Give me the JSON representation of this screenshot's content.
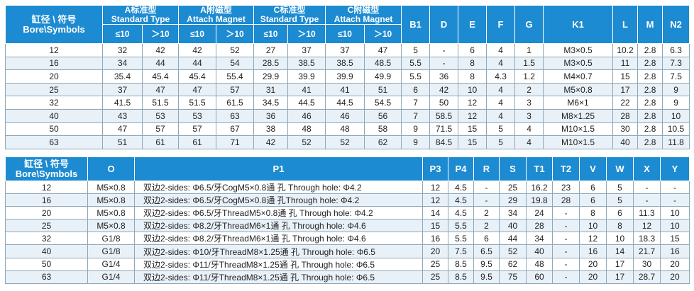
{
  "table1": {
    "bore_header_line1": "缸径 \\ 符号",
    "bore_header_line2": "Bore\\Symbols",
    "groups": [
      {
        "cn": "A标准型",
        "en": "Standard Type"
      },
      {
        "cn": "A附磁型",
        "en": "Attach Magnet"
      },
      {
        "cn": "C标准型",
        "en": "Standard Type"
      },
      {
        "cn": "C附磁型",
        "en": "Attach Magnet"
      }
    ],
    "cond_le": "≤10",
    "cond_gt": "＞10",
    "letters": [
      "B1",
      "D",
      "E",
      "F",
      "G",
      "K1",
      "L",
      "M",
      "N2"
    ],
    "rows": [
      [
        "12",
        "32",
        "42",
        "42",
        "52",
        "27",
        "37",
        "37",
        "47",
        "5",
        "-",
        "6",
        "4",
        "1",
        "M3×0.5",
        "10.2",
        "2.8",
        "6.3"
      ],
      [
        "16",
        "34",
        "44",
        "44",
        "54",
        "28.5",
        "38.5",
        "38.5",
        "48.5",
        "5.5",
        "-",
        "8",
        "4",
        "1.5",
        "M3×0.5",
        "11",
        "2.8",
        "7.3"
      ],
      [
        "20",
        "35.4",
        "45.4",
        "45.4",
        "55.4",
        "29.9",
        "39.9",
        "39.9",
        "49.9",
        "5.5",
        "36",
        "8",
        "4.3",
        "1.2",
        "M4×0.7",
        "15",
        "2.8",
        "7.5"
      ],
      [
        "25",
        "37",
        "47",
        "47",
        "57",
        "31",
        "41",
        "41",
        "51",
        "6",
        "42",
        "10",
        "4",
        "2",
        "M5×0.8",
        "17",
        "2.8",
        "9"
      ],
      [
        "32",
        "41.5",
        "51.5",
        "51.5",
        "61.5",
        "34.5",
        "44.5",
        "44.5",
        "54.5",
        "7",
        "50",
        "12",
        "4",
        "3",
        "M6×1",
        "22",
        "2.8",
        "9"
      ],
      [
        "40",
        "43",
        "53",
        "53",
        "63",
        "36",
        "46",
        "46",
        "56",
        "7",
        "58.5",
        "12",
        "4",
        "3",
        "M8×1.25",
        "28",
        "2.8",
        "10"
      ],
      [
        "50",
        "47",
        "57",
        "57",
        "67",
        "38",
        "48",
        "48",
        "58",
        "9",
        "71.5",
        "15",
        "5",
        "4",
        "M10×1.5",
        "30",
        "2.8",
        "10.5"
      ],
      [
        "63",
        "51",
        "61",
        "61",
        "71",
        "42",
        "52",
        "52",
        "62",
        "9",
        "84.5",
        "15",
        "5",
        "4",
        "M10×1.5",
        "40",
        "2.8",
        "11.8"
      ]
    ]
  },
  "table2": {
    "bore_header_line1": "缸径 \\ 符号",
    "bore_header_line2": "Bore\\Symbols",
    "columns": [
      "O",
      "P1",
      "P3",
      "P4",
      "R",
      "S",
      "T1",
      "T2",
      "V",
      "W",
      "X",
      "Y"
    ],
    "rows": [
      [
        "12",
        "M5×0.8",
        "双边2-sides: Φ6.5/牙CogM5×0.8通 孔 Through hole: Φ4.2",
        "12",
        "4.5",
        "-",
        "25",
        "16.2",
        "23",
        "6",
        "5",
        "-",
        "-"
      ],
      [
        "16",
        "M5×0.8",
        "双边2-sides: Φ6.5/牙CogM5×0.8通 孔Through hole: Φ4.2",
        "12",
        "4.5",
        "-",
        "29",
        "19.8",
        "28",
        "6",
        "5",
        "-",
        "-"
      ],
      [
        "20",
        "M5×0.8",
        "双边2-sides: Φ6.5/牙ThreadM5×0.8通 孔 Through hole: Φ4.2",
        "14",
        "4.5",
        "2",
        "34",
        "24",
        "-",
        "8",
        "6",
        "11.3",
        "10"
      ],
      [
        "25",
        "M5×0.8",
        "双边2-sides: Φ8.2/牙ThreadM6×1通 孔 Through hole: Φ4.6",
        "15",
        "5.5",
        "2",
        "40",
        "28",
        "-",
        "10",
        "8",
        "12",
        "10"
      ],
      [
        "32",
        "G1/8",
        "双边2-sides: Φ8.2/牙ThreadM6×1通 孔 Through hole: Φ4.6",
        "16",
        "5.5",
        "6",
        "44",
        "34",
        "-",
        "12",
        "10",
        "18.3",
        "15"
      ],
      [
        "40",
        "G1/8",
        "双边2-sides: Φ10/牙ThreadM8×1.25通 孔 Through hole: Φ6.5",
        "20",
        "7.5",
        "6.5",
        "52",
        "40",
        "-",
        "16",
        "14",
        "21.7",
        "16"
      ],
      [
        "50",
        "G1/4",
        "双边2-sides: Φ11/牙ThreadM8×1.25通 孔 Through hole: Φ6.5",
        "25",
        "8.5",
        "9.5",
        "62",
        "48",
        "-",
        "20",
        "17",
        "30",
        "20"
      ],
      [
        "63",
        "G1/4",
        "双边2-sides: Φ11/牙ThreadM8×1.25通 孔 Through hole: Φ6.5",
        "25",
        "8.5",
        "9.5",
        "75",
        "60",
        "-",
        "20",
        "17",
        "28.7",
        "20"
      ]
    ]
  }
}
